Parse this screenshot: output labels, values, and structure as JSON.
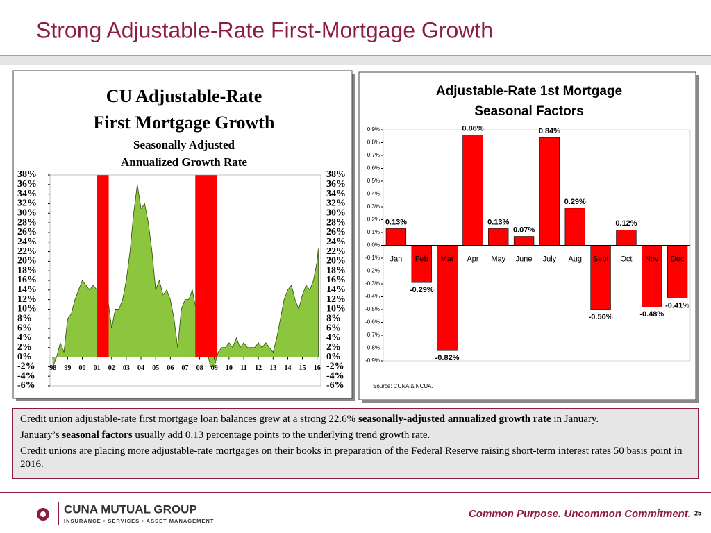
{
  "slide": {
    "title": "Strong Adjustable-Rate First-Mortgage Growth"
  },
  "chart_data": [
    {
      "type": "area",
      "title": [
        "CU Adjustable-Rate",
        "First Mortgage Growth"
      ],
      "subtitle": [
        "Seasonally Adjusted",
        "Annualized Growth Rate"
      ],
      "color": "#8cc63f",
      "band_color": "#ff0000",
      "bands": [
        {
          "x": [
            2001.0,
            2001.8
          ]
        },
        {
          "x": [
            2007.7,
            2009.2
          ]
        }
      ],
      "x": [
        1998.0,
        1998.25,
        1998.5,
        1998.75,
        1999.0,
        1999.25,
        1999.5,
        1999.75,
        2000.0,
        2000.25,
        2000.5,
        2000.75,
        2001.0,
        2001.25,
        2001.5,
        2001.75,
        2002.0,
        2002.25,
        2002.5,
        2002.75,
        2003.0,
        2003.25,
        2003.5,
        2003.75,
        2004.0,
        2004.25,
        2004.5,
        2004.75,
        2005.0,
        2005.25,
        2005.5,
        2005.75,
        2006.0,
        2006.25,
        2006.5,
        2006.75,
        2007.0,
        2007.25,
        2007.5,
        2007.75,
        2008.0,
        2008.25,
        2008.5,
        2008.75,
        2009.0,
        2009.25,
        2009.5,
        2009.75,
        2010.0,
        2010.25,
        2010.5,
        2010.75,
        2011.0,
        2011.25,
        2011.5,
        2011.75,
        2012.0,
        2012.25,
        2012.5,
        2012.75,
        2013.0,
        2013.25,
        2013.5,
        2013.75,
        2014.0,
        2014.25,
        2014.5,
        2014.75,
        2015.0,
        2015.25,
        2015.5,
        2015.75,
        2016.0,
        2016.08
      ],
      "values": [
        -2,
        0,
        3,
        1,
        8,
        9,
        12,
        14,
        16,
        15,
        14,
        15,
        14,
        16,
        13,
        12,
        6,
        10,
        10,
        12,
        16,
        22,
        30,
        36,
        31,
        32,
        28,
        22,
        14,
        16,
        13,
        14,
        12,
        8,
        2,
        10,
        12,
        12,
        14,
        10,
        5,
        3,
        1,
        -2,
        -2,
        1,
        2,
        2,
        3,
        2,
        4,
        2,
        3,
        2,
        2,
        2,
        3,
        2,
        3,
        2,
        1,
        4,
        8,
        12,
        14,
        15,
        12,
        10,
        13,
        15,
        14,
        16,
        20,
        22.6
      ],
      "xlim": [
        1997.8,
        2016.25
      ],
      "xticks": [
        {
          "value": 1998,
          "label": "98"
        },
        {
          "value": 1999,
          "label": "99"
        },
        {
          "value": 2000,
          "label": "00"
        },
        {
          "value": 2001,
          "label": "01"
        },
        {
          "value": 2002,
          "label": "02"
        },
        {
          "value": 2003,
          "label": "03"
        },
        {
          "value": 2004,
          "label": "04"
        },
        {
          "value": 2005,
          "label": "05"
        },
        {
          "value": 2006,
          "label": "06"
        },
        {
          "value": 2007,
          "label": "07"
        },
        {
          "value": 2008,
          "label": "08"
        },
        {
          "value": 2009,
          "label": "09"
        },
        {
          "value": 2010,
          "label": "10"
        },
        {
          "value": 2011,
          "label": "11"
        },
        {
          "value": 2012,
          "label": "12"
        },
        {
          "value": 2013,
          "label": "13"
        },
        {
          "value": 2014,
          "label": "14"
        },
        {
          "value": 2015,
          "label": "15"
        },
        {
          "value": 2016,
          "label": "16"
        }
      ],
      "ylim": [
        -6,
        38
      ],
      "yticks": [
        {
          "value": 38,
          "label": "38%"
        },
        {
          "value": 36,
          "label": "36%"
        },
        {
          "value": 34,
          "label": "34%"
        },
        {
          "value": 32,
          "label": "32%"
        },
        {
          "value": 30,
          "label": "30%"
        },
        {
          "value": 28,
          "label": "28%"
        },
        {
          "value": 26,
          "label": "26%"
        },
        {
          "value": 24,
          "label": "24%"
        },
        {
          "value": 22,
          "label": "22%"
        },
        {
          "value": 20,
          "label": "20%"
        },
        {
          "value": 18,
          "label": "18%"
        },
        {
          "value": 16,
          "label": "16%"
        },
        {
          "value": 14,
          "label": "14%"
        },
        {
          "value": 12,
          "label": "12%"
        },
        {
          "value": 10,
          "label": "10%"
        },
        {
          "value": 8,
          "label": "8%"
        },
        {
          "value": 6,
          "label": "6%"
        },
        {
          "value": 4,
          "label": "4%"
        },
        {
          "value": 2,
          "label": "2%"
        },
        {
          "value": 0,
          "label": "0%"
        },
        {
          "value": -2,
          "label": "-2%"
        },
        {
          "value": -4,
          "label": "-4%"
        },
        {
          "value": -6,
          "label": "-6%"
        }
      ]
    },
    {
      "type": "bar",
      "title": [
        "Adjustable-Rate 1st Mortgage",
        "Seasonal Factors"
      ],
      "color": "#ff0000",
      "categories": [
        "Jan",
        "Feb",
        "Mar",
        "Apr",
        "May",
        "June",
        "July",
        "Aug",
        "Sept",
        "Oct",
        "Nov",
        "Dec"
      ],
      "values": [
        0.13,
        -0.29,
        -0.82,
        0.86,
        0.13,
        0.07,
        0.84,
        0.29,
        -0.5,
        0.12,
        -0.48,
        -0.41
      ],
      "value_labels": [
        "0.13%",
        "-0.29%",
        "-0.82%",
        "0.86%",
        "0.13%",
        "0.07%",
        "0.84%",
        "0.29%",
        "-0.50%",
        "0.12%",
        "-0.48%",
        "-0.41%"
      ],
      "ylim": [
        -0.9,
        0.9
      ],
      "yticks": [
        {
          "value": 0.9,
          "label": "0.9%"
        },
        {
          "value": 0.8,
          "label": "0.8%"
        },
        {
          "value": 0.7,
          "label": "0.7%"
        },
        {
          "value": 0.6,
          "label": "0.6%"
        },
        {
          "value": 0.5,
          "label": "0.5%"
        },
        {
          "value": 0.4,
          "label": "0.4%"
        },
        {
          "value": 0.3,
          "label": "0.3%"
        },
        {
          "value": 0.2,
          "label": "0.2%"
        },
        {
          "value": 0.1,
          "label": "0.1%"
        },
        {
          "value": 0,
          "label": "0.0%"
        },
        {
          "value": -0.1,
          "label": "-0.1%"
        },
        {
          "value": -0.2,
          "label": "-0.2%"
        },
        {
          "value": -0.3,
          "label": "-0.3%"
        },
        {
          "value": -0.4,
          "label": "-0.4%"
        },
        {
          "value": -0.5,
          "label": "-0.5%"
        },
        {
          "value": -0.6,
          "label": "-0.6%"
        },
        {
          "value": -0.7,
          "label": "-0.7%"
        },
        {
          "value": -0.8,
          "label": "-0.8%"
        },
        {
          "value": -0.9,
          "label": "-0.9%"
        }
      ],
      "source": "Source: CUNA & NCUA."
    }
  ],
  "text_box": {
    "paragraphs": [
      [
        {
          "text": "Credit union adjustable-rate first mortgage loan balances grew at a strong 22.6% "
        },
        {
          "text": "seasonally-adjusted annualized growth rate",
          "bold": true
        },
        {
          "text": " in January."
        }
      ],
      [
        {
          "text": "January’s "
        },
        {
          "text": "seasonal factors",
          "bold": true
        },
        {
          "text": " usually add 0.13 percentage points to the underlying trend growth rate."
        }
      ],
      [
        {
          "text": "Credit unions are placing more adjustable-rate mortgages on their books in preparation of the Federal Reserve raising short-term interest rates 50 basis point in 2016."
        }
      ]
    ]
  },
  "footer": {
    "logo": "CUNA MUTUAL GROUP",
    "logo_tagline": "INSURANCE • SERVICES • ASSET MANAGEMENT",
    "tagline": "Common Purpose. Uncommon Commitment.",
    "page": "25"
  }
}
